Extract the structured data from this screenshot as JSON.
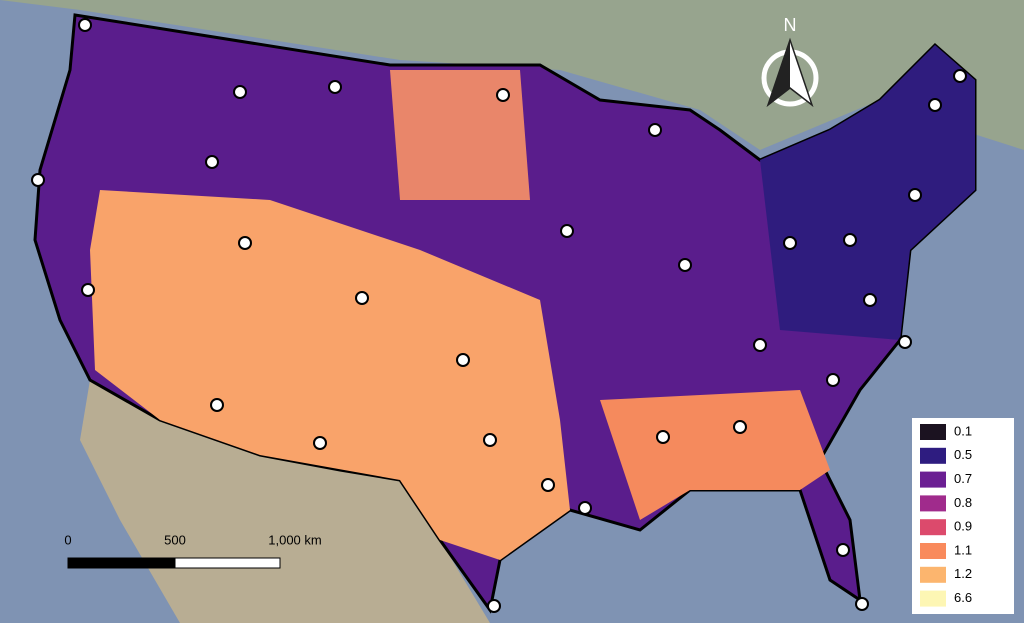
{
  "north_label": "N",
  "legend": {
    "items": [
      {
        "label": "0.1",
        "color": "#1b1220"
      },
      {
        "label": "0.5",
        "color": "#2e1c80"
      },
      {
        "label": "0.7",
        "color": "#6b1f93"
      },
      {
        "label": "0.8",
        "color": "#a02b8c"
      },
      {
        "label": "0.9",
        "color": "#dc4a6c"
      },
      {
        "label": "1.1",
        "color": "#f98a5c"
      },
      {
        "label": "1.2",
        "color": "#fcb56e"
      },
      {
        "label": "6.6",
        "color": "#fdf6b4"
      }
    ]
  },
  "scale_bar": {
    "labels": [
      "0",
      "500",
      "1,000 km"
    ]
  }
}
